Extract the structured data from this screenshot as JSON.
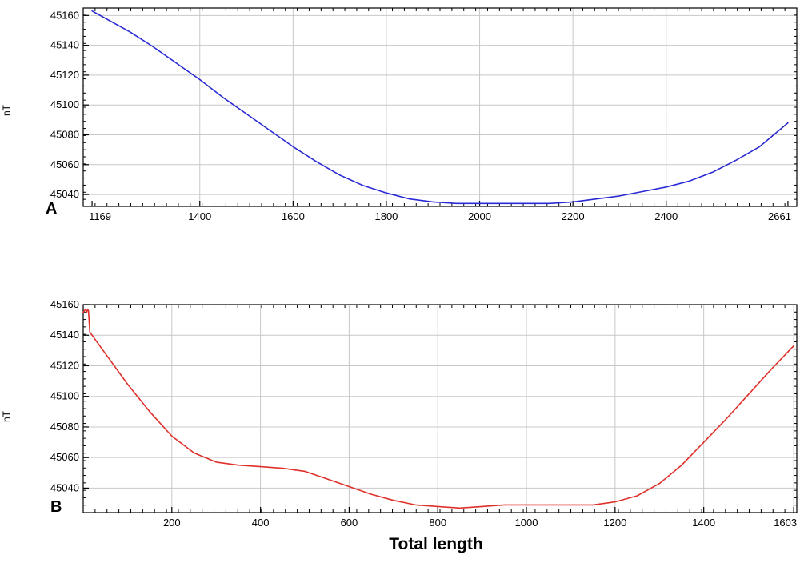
{
  "chart_data": [
    {
      "type": "line",
      "panel_label": "A",
      "ylabel": "nT",
      "xlabel": "",
      "xlim": [
        1150,
        2680
      ],
      "ylim": [
        45032,
        45165
      ],
      "x_ticks": [
        1169,
        1400,
        1600,
        1800,
        2000,
        2200,
        2400,
        2661
      ],
      "y_ticks": [
        45040,
        45060,
        45080,
        45100,
        45120,
        45140,
        45160
      ],
      "grid": true,
      "color": "#2a2ad6",
      "series": [
        {
          "x": [
            1169,
            1250,
            1300,
            1350,
            1400,
            1450,
            1500,
            1550,
            1600,
            1650,
            1700,
            1750,
            1800,
            1850,
            1900,
            1950,
            2000,
            2050,
            2100,
            2150,
            2200,
            2250,
            2300,
            2350,
            2400,
            2450,
            2500,
            2550,
            2600,
            2661
          ],
          "y": [
            45163,
            45149,
            45139,
            45128,
            45117,
            45105,
            45094,
            45083,
            45072,
            45062,
            45053,
            45046,
            45041,
            45037,
            45035,
            45034,
            45034,
            45034,
            45034,
            45034,
            45035,
            45037,
            45039,
            45042,
            45045,
            45049,
            45055,
            45063,
            45072,
            45088
          ]
        }
      ]
    },
    {
      "type": "line",
      "panel_label": "B",
      "ylabel": "nT",
      "xlabel": "Total length",
      "xlim": [
        0,
        1610
      ],
      "ylim": [
        45024,
        45160
      ],
      "x_ticks": [
        200,
        400,
        600,
        800,
        1000,
        1200,
        1400,
        1603
      ],
      "y_ticks": [
        45040,
        45060,
        45080,
        45100,
        45120,
        45140,
        45160
      ],
      "grid": true,
      "color": "#e0302a",
      "series": [
        {
          "x": [
            0,
            5,
            8,
            10,
            12,
            15,
            20,
            50,
            100,
            150,
            200,
            250,
            300,
            350,
            400,
            450,
            500,
            550,
            600,
            650,
            700,
            750,
            800,
            850,
            900,
            950,
            1000,
            1050,
            1100,
            1150,
            1200,
            1250,
            1300,
            1350,
            1400,
            1450,
            1500,
            1550,
            1603
          ],
          "y": [
            45155,
            45157,
            45155,
            45157,
            45156,
            45142,
            45140,
            45128,
            45108,
            45090,
            45074,
            45063,
            45057,
            45055,
            45054,
            45053,
            45051,
            45046,
            45041,
            45036,
            45032,
            45029,
            45028,
            45027,
            45028,
            45029,
            45029,
            45029,
            45029,
            45029,
            45031,
            45035,
            45043,
            45055,
            45070,
            45085,
            45101,
            45117,
            45133
          ]
        }
      ]
    }
  ]
}
